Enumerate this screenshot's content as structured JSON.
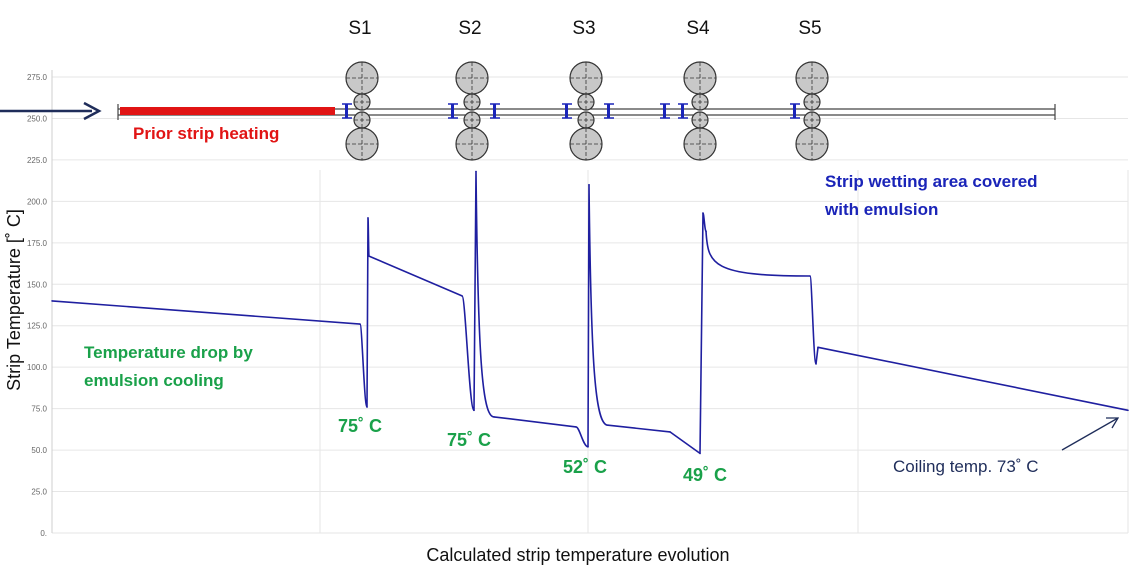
{
  "colors": {
    "curve": "#1f1fa0",
    "annotation_green": "#1aa14a",
    "annotation_blue": "#1a24b8",
    "heating_red": "#e11414",
    "grid": "#e6e6e6",
    "tick_text": "#666666",
    "arrow_navy": "#1f2d5a"
  },
  "stands": [
    "S1",
    "S2",
    "S3",
    "S4",
    "S5"
  ],
  "annotations": {
    "prior_heating": "Prior strip heating",
    "wetting_line1": "Strip wetting area covered",
    "wetting_line2": "with emulsion",
    "drop_line1": "Temperature drop by",
    "drop_line2": "emulsion cooling",
    "coiling": "Coiling temp. 73˚ C"
  },
  "min_labels": [
    "75˚ C",
    "75˚ C",
    "52˚ C",
    "49˚ C"
  ],
  "chart_data": {
    "type": "line",
    "title": "",
    "xlabel": "Calculated strip temperature evolution",
    "ylabel": "Strip Temperature [˚ C]",
    "ylim": [
      0,
      275
    ],
    "yticks": [
      0,
      25,
      50,
      75,
      100,
      125,
      150,
      175,
      200,
      225,
      250,
      275
    ],
    "ytick_labels": [
      "0.",
      "25.0",
      "50.0",
      "75.0",
      "100.0",
      "125.0",
      "150.0",
      "175.0",
      "200.0",
      "225.0",
      "250.0",
      "275.0"
    ],
    "grid": true,
    "series": [
      {
        "y": [
          140,
          126,
          76,
          190,
          167,
          143,
          74,
          218,
          70,
          64,
          52,
          210,
          65,
          61,
          48,
          193,
          182,
          155,
          102,
          112,
          74
        ]
      }
    ]
  }
}
